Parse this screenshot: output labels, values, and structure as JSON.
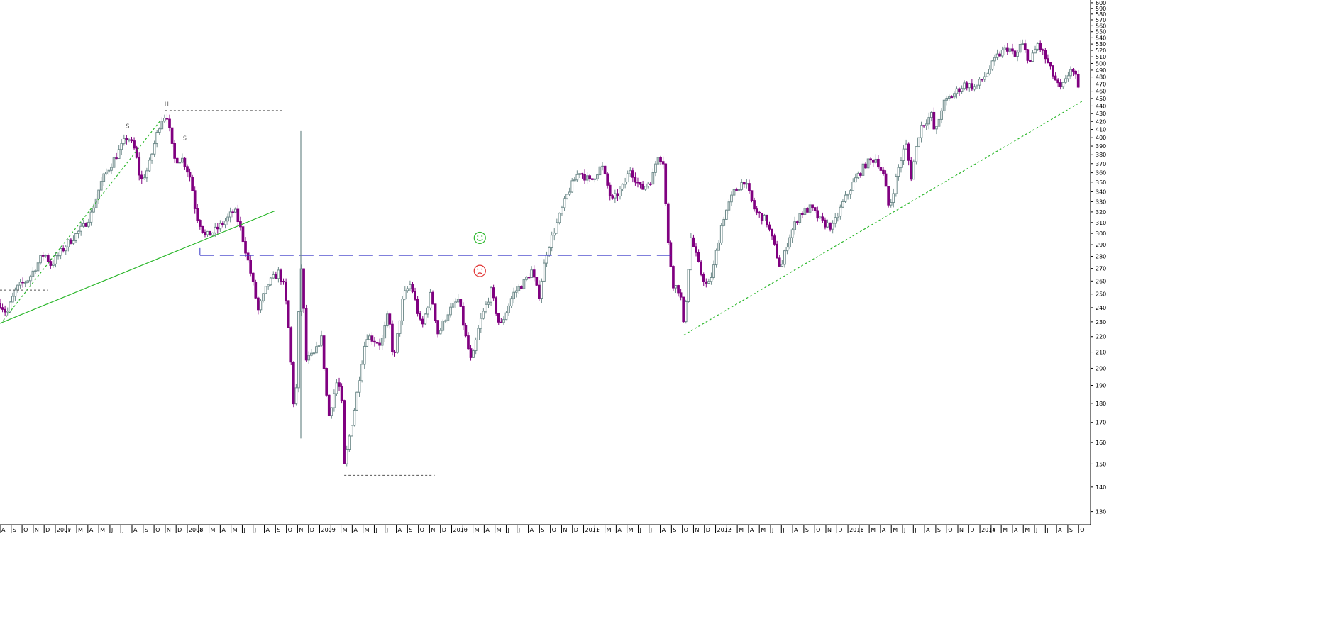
{
  "chart_data": {
    "type": "candlestick",
    "scale": "log",
    "ylim": [
      125,
      605
    ],
    "y_ticks": [
      130,
      140,
      150,
      160,
      170,
      180,
      190,
      200,
      210,
      220,
      230,
      240,
      250,
      260,
      270,
      280,
      290,
      300,
      310,
      320,
      330,
      340,
      350,
      360,
      370,
      380,
      390,
      400,
      410,
      420,
      430,
      440,
      450,
      460,
      470,
      480,
      490,
      500,
      510,
      520,
      530,
      540,
      550,
      560,
      570,
      580,
      590,
      600
    ],
    "y_axis_side": "right",
    "grid": false,
    "colors": {
      "up": "#6f8b8b",
      "down": "#800080",
      "background": "#ffffff",
      "axis": "#000000"
    },
    "time_start": "2006-08",
    "time_end": "2014-10",
    "month_labels": [
      "A",
      "S",
      "O",
      "N",
      "D",
      "2007",
      "F",
      "M",
      "A",
      "M",
      "J",
      "J",
      "A",
      "S",
      "O",
      "N",
      "D",
      "2008",
      "F",
      "M",
      "A",
      "M",
      "J",
      "J",
      "A",
      "S",
      "O",
      "N",
      "D",
      "2009",
      "F",
      "M",
      "A",
      "M",
      "J",
      "J",
      "A",
      "S",
      "O",
      "N",
      "D",
      "2010",
      "F",
      "M",
      "A",
      "M",
      "J",
      "J",
      "A",
      "S",
      "O",
      "N",
      "D",
      "2011",
      "F",
      "M",
      "A",
      "M",
      "J",
      "J",
      "A",
      "S",
      "O",
      "N",
      "D",
      "2012",
      "F",
      "M",
      "A",
      "M",
      "J",
      "J",
      "A",
      "S",
      "O",
      "N",
      "D",
      "2013",
      "F",
      "M",
      "A",
      "M",
      "J",
      "J",
      "A",
      "S",
      "O",
      "N",
      "D",
      "2014",
      "F",
      "M",
      "A",
      "M",
      "J",
      "J",
      "A",
      "S",
      "O"
    ],
    "anchors": [
      [
        "2006-08-01",
        243
      ],
      [
        "2006-08-20",
        236
      ],
      [
        "2006-09-15",
        254
      ],
      [
        "2006-10-20",
        262
      ],
      [
        "2006-12-01",
        283
      ],
      [
        "2006-12-20",
        273
      ],
      [
        "2007-02-01",
        290
      ],
      [
        "2007-03-20",
        306
      ],
      [
        "2007-04-10",
        318
      ],
      [
        "2007-05-10",
        352
      ],
      [
        "2007-06-20",
        380
      ],
      [
        "2007-07-20",
        402
      ],
      [
        "2007-08-10",
        384
      ],
      [
        "2007-08-25",
        350
      ],
      [
        "2007-09-15",
        365
      ],
      [
        "2007-10-20",
        422
      ],
      [
        "2007-11-05",
        430
      ],
      [
        "2007-11-25",
        375
      ],
      [
        "2007-12-20",
        375
      ],
      [
        "2008-01-10",
        354
      ],
      [
        "2008-01-25",
        318
      ],
      [
        "2008-02-20",
        297
      ],
      [
        "2008-03-20",
        303
      ],
      [
        "2008-04-20",
        313
      ],
      [
        "2008-05-10",
        322
      ],
      [
        "2008-05-25",
        307
      ],
      [
        "2008-06-20",
        272
      ],
      [
        "2008-07-15",
        238
      ],
      [
        "2008-08-10",
        257
      ],
      [
        "2008-09-10",
        267
      ],
      [
        "2008-09-25",
        255
      ],
      [
        "2008-10-05",
        232
      ],
      [
        "2008-10-25",
        168
      ],
      [
        "2008-11-10",
        275
      ],
      [
        "2008-11-25",
        205
      ],
      [
        "2008-12-20",
        209
      ],
      [
        "2009-01-05",
        221
      ],
      [
        "2009-01-25",
        172
      ],
      [
        "2009-02-20",
        194
      ],
      [
        "2009-03-05",
        177
      ],
      [
        "2009-03-10",
        149
      ],
      [
        "2009-04-10",
        180
      ],
      [
        "2009-05-10",
        221
      ],
      [
        "2009-06-20",
        215
      ],
      [
        "2009-07-10",
        236
      ],
      [
        "2009-07-25",
        203
      ],
      [
        "2009-08-20",
        248
      ],
      [
        "2009-09-10",
        258
      ],
      [
        "2009-10-10",
        225
      ],
      [
        "2009-11-05",
        251
      ],
      [
        "2009-11-25",
        221
      ],
      [
        "2009-12-20",
        236
      ],
      [
        "2010-01-20",
        246
      ],
      [
        "2010-02-10",
        218
      ],
      [
        "2010-02-25",
        203
      ],
      [
        "2010-03-20",
        229
      ],
      [
        "2010-04-20",
        252
      ],
      [
        "2010-05-15",
        226
      ],
      [
        "2010-06-20",
        250
      ],
      [
        "2010-07-20",
        259
      ],
      [
        "2010-08-10",
        268
      ],
      [
        "2010-08-30",
        248
      ],
      [
        "2010-09-20",
        283
      ],
      [
        "2010-10-20",
        310
      ],
      [
        "2010-11-20",
        340
      ],
      [
        "2010-12-20",
        362
      ],
      [
        "2011-01-20",
        350
      ],
      [
        "2011-02-20",
        368
      ],
      [
        "2011-03-20",
        330
      ],
      [
        "2011-04-20",
        345
      ],
      [
        "2011-05-10",
        364
      ],
      [
        "2011-06-10",
        342
      ],
      [
        "2011-07-10",
        354
      ],
      [
        "2011-07-25",
        381
      ],
      [
        "2011-08-10",
        372
      ],
      [
        "2011-08-20",
        298
      ],
      [
        "2011-09-05",
        258
      ],
      [
        "2011-09-25",
        252
      ],
      [
        "2011-10-05",
        225
      ],
      [
        "2011-10-25",
        296
      ],
      [
        "2011-11-20",
        267
      ],
      [
        "2011-12-10",
        255
      ],
      [
        "2011-12-25",
        268
      ],
      [
        "2012-01-20",
        312
      ],
      [
        "2012-02-20",
        339
      ],
      [
        "2012-03-20",
        352
      ],
      [
        "2012-04-20",
        320
      ],
      [
        "2012-05-20",
        312
      ],
      [
        "2012-06-10",
        290
      ],
      [
        "2012-06-30",
        269
      ],
      [
        "2012-07-20",
        295
      ],
      [
        "2012-08-20",
        318
      ],
      [
        "2012-09-20",
        324
      ],
      [
        "2012-10-20",
        310
      ],
      [
        "2012-11-20",
        306
      ],
      [
        "2012-12-20",
        330
      ],
      [
        "2013-01-20",
        352
      ],
      [
        "2013-02-20",
        370
      ],
      [
        "2013-03-20",
        376
      ],
      [
        "2013-04-10",
        356
      ],
      [
        "2013-04-25",
        322
      ],
      [
        "2013-05-20",
        364
      ],
      [
        "2013-06-10",
        393
      ],
      [
        "2013-06-25",
        356
      ],
      [
        "2013-07-20",
        413
      ],
      [
        "2013-08-20",
        428
      ],
      [
        "2013-08-30",
        403
      ],
      [
        "2013-09-20",
        442
      ],
      [
        "2013-10-20",
        456
      ],
      [
        "2013-11-20",
        470
      ],
      [
        "2013-12-20",
        465
      ],
      [
        "2014-01-20",
        485
      ],
      [
        "2014-02-20",
        512
      ],
      [
        "2014-03-20",
        525
      ],
      [
        "2014-04-10",
        508
      ],
      [
        "2014-04-25",
        532
      ],
      [
        "2014-05-20",
        502
      ],
      [
        "2014-06-10",
        530
      ],
      [
        "2014-06-25",
        515
      ],
      [
        "2014-07-20",
        485
      ],
      [
        "2014-08-10",
        462
      ],
      [
        "2014-08-25",
        472
      ],
      [
        "2014-09-10",
        495
      ],
      [
        "2014-09-25",
        476
      ],
      [
        "2014-10-05",
        445
      ]
    ],
    "annotations": {
      "hs_labels": [
        {
          "text": "S",
          "date": "2007-07-20",
          "y": 412
        },
        {
          "text": "H",
          "date": "2007-11-05",
          "y": 440
        },
        {
          "text": "S",
          "date": "2007-12-25",
          "y": 397
        }
      ],
      "dotted_levels": [
        {
          "from": "2006-08-01",
          "to": "2006-12-10",
          "y": 253
        },
        {
          "from": "2007-11-01",
          "to": "2008-09-25",
          "y": 434
        },
        {
          "from": "2009-03-10",
          "to": "2009-11-15",
          "y": 145
        }
      ],
      "neckline_level": {
        "from": "2008-02-05",
        "to": "2011-09-05",
        "y": 281
      },
      "vertical_line": {
        "date": "2008-11-10",
        "y_from": 162,
        "y_to": 408
      },
      "trend_lines": [
        {
          "style": "solid",
          "color": "#2db82d",
          "from": [
            "2006-08-01",
            229
          ],
          "to": [
            "2008-08-30",
            321
          ]
        },
        {
          "style": "dotted",
          "color": "#2db82d",
          "from": [
            "2006-08-10",
            231
          ],
          "to": [
            "2007-10-20",
            422
          ]
        },
        {
          "style": "dotted",
          "color": "#2db82d",
          "from": [
            "2011-10-05",
            221
          ],
          "to": [
            "2014-10-10",
            446
          ]
        }
      ],
      "smiley_positive": {
        "date": "2010-03-20",
        "y": 296,
        "color": "#2db82d"
      },
      "smiley_negative": {
        "date": "2010-03-20",
        "y": 268,
        "color": "#e03030"
      }
    }
  }
}
